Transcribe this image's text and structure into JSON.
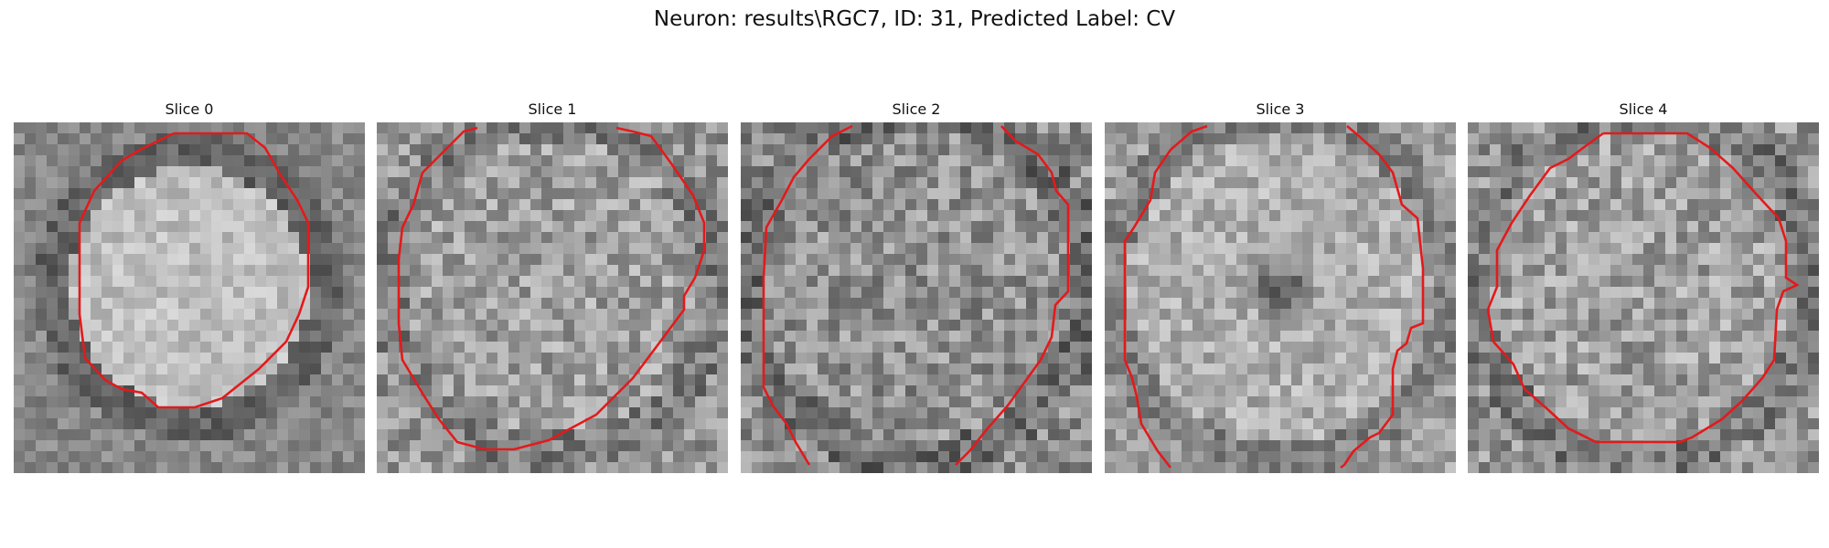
{
  "figure": {
    "title": "Neuron: results\\RGC7, ID: 31, Predicted Label: CV",
    "contour_color": "#e31a1c"
  },
  "slices": [
    {
      "label": "Slice 0"
    },
    {
      "label": "Slice 1"
    },
    {
      "label": "Slice 2"
    },
    {
      "label": "Slice 3"
    },
    {
      "label": "Slice 4"
    }
  ]
}
